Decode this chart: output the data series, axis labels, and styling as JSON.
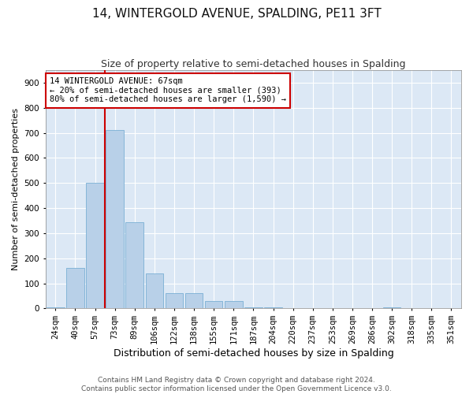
{
  "title": "14, WINTERGOLD AVENUE, SPALDING, PE11 3FT",
  "subtitle": "Size of property relative to semi-detached houses in Spalding",
  "xlabel": "Distribution of semi-detached houses by size in Spalding",
  "ylabel": "Number of semi-detached properties",
  "categories": [
    "24sqm",
    "40sqm",
    "57sqm",
    "73sqm",
    "89sqm",
    "106sqm",
    "122sqm",
    "138sqm",
    "155sqm",
    "171sqm",
    "187sqm",
    "204sqm",
    "220sqm",
    "237sqm",
    "253sqm",
    "269sqm",
    "286sqm",
    "302sqm",
    "318sqm",
    "335sqm",
    "351sqm"
  ],
  "values": [
    5,
    160,
    500,
    710,
    345,
    140,
    60,
    60,
    30,
    30,
    5,
    5,
    0,
    0,
    0,
    0,
    0,
    5,
    0,
    0,
    0
  ],
  "bar_color": "#b8d0e8",
  "bar_edge_color": "#7aafd4",
  "annotation_text": "14 WINTERGOLD AVENUE: 67sqm\n← 20% of semi-detached houses are smaller (393)\n80% of semi-detached houses are larger (1,590) →",
  "annotation_box_color": "#ffffff",
  "annotation_box_edge": "#cc0000",
  "red_line_color": "#cc0000",
  "ylim": [
    0,
    950
  ],
  "yticks": [
    0,
    100,
    200,
    300,
    400,
    500,
    600,
    700,
    800,
    900
  ],
  "footnote": "Contains HM Land Registry data © Crown copyright and database right 2024.\nContains public sector information licensed under the Open Government Licence v3.0.",
  "background_color": "#dce8f5",
  "title_fontsize": 11,
  "subtitle_fontsize": 9,
  "xlabel_fontsize": 9,
  "ylabel_fontsize": 8,
  "tick_fontsize": 7.5,
  "annotation_fontsize": 7.5,
  "footnote_fontsize": 6.5
}
